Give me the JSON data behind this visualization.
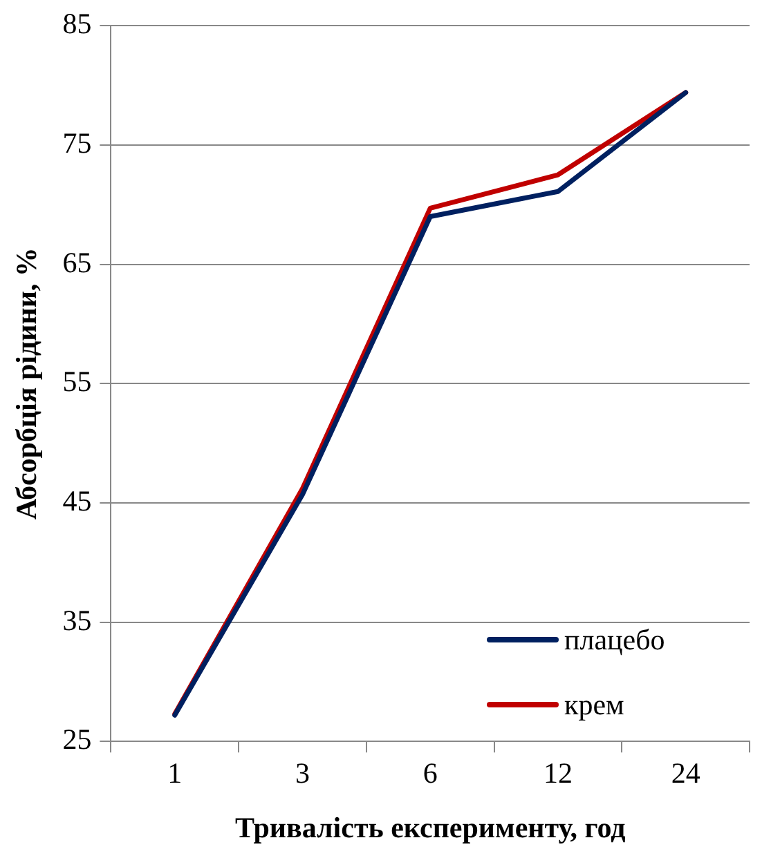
{
  "chart_data": {
    "type": "line",
    "xlabel": "Тривалість експерименту, год",
    "ylabel": "Абсорбція рідини, %",
    "categories": [
      "1",
      "3",
      "6",
      "12",
      "24"
    ],
    "series": [
      {
        "name": "плацебо",
        "color": "#002060",
        "values": [
          27.2,
          45.7,
          69.0,
          71.1,
          79.4
        ]
      },
      {
        "name": "крем",
        "color": "#c00000",
        "values": [
          27.3,
          46.2,
          69.7,
          72.5,
          79.4
        ]
      }
    ],
    "ylim": [
      25,
      85
    ],
    "yticks": [
      25,
      35,
      45,
      55,
      65,
      75,
      85
    ],
    "grid": "y",
    "legend": "bottom right",
    "marker": "none",
    "line_style": "solid"
  }
}
